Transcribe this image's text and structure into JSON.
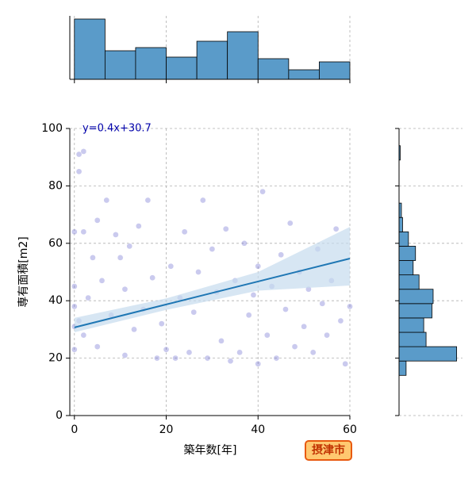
{
  "chart_data": [
    {
      "type": "scatter",
      "annotation": "y=0.4x+30.7",
      "xlabel": "築年数[年]",
      "ylabel": "専有面積[m2]",
      "badge": "摂津市",
      "x": [
        0,
        0,
        0,
        0,
        0,
        1,
        1,
        1,
        2,
        2,
        2,
        3,
        4,
        5,
        5,
        6,
        7,
        8,
        9,
        10,
        11,
        11,
        12,
        13,
        14,
        15,
        16,
        17,
        18,
        19,
        20,
        21,
        22,
        23,
        24,
        25,
        26,
        27,
        28,
        29,
        30,
        31,
        32,
        33,
        34,
        35,
        36,
        37,
        38,
        39,
        40,
        40,
        41,
        42,
        43,
        44,
        45,
        46,
        47,
        48,
        49,
        50,
        51,
        52,
        53,
        54,
        55,
        56,
        57,
        58,
        59,
        60
      ],
      "y": [
        23,
        31,
        38,
        45,
        64,
        33,
        91,
        85,
        64,
        28,
        92,
        41,
        55,
        24,
        68,
        47,
        75,
        35,
        63,
        55,
        21,
        44,
        59,
        30,
        66,
        37,
        75,
        48,
        20,
        32,
        23,
        52,
        20,
        41,
        64,
        22,
        36,
        50,
        75,
        20,
        58,
        43,
        26,
        65,
        19,
        47,
        22,
        60,
        35,
        42,
        18,
        52,
        78,
        28,
        45,
        20,
        56,
        37,
        67,
        24,
        50,
        31,
        44,
        22,
        58,
        39,
        28,
        47,
        65,
        33,
        18,
        38
      ],
      "color": "#5050c8",
      "xlim": [
        -1,
        60
      ],
      "ylim": [
        0,
        100
      ],
      "xticks": [
        0,
        20,
        40,
        60
      ],
      "yticks": [
        0,
        20,
        40,
        60,
        80,
        100
      ],
      "grid": true,
      "fit": {
        "x": [
          0,
          20,
          40,
          60
        ],
        "y": [
          30.7,
          38.7,
          46.7,
          54.7
        ],
        "lower": [
          29,
          36.8,
          43.5,
          45.3
        ],
        "upper": [
          34,
          40.8,
          50,
          65.7
        ],
        "color": "#1f77b4",
        "band_color": "#c6dcee"
      }
    },
    {
      "type": "histogram",
      "orientation": "vertical",
      "bins": [
        0,
        6.67,
        13.33,
        20,
        26.67,
        33.33,
        40,
        46.67,
        53.33,
        60
      ],
      "counts": [
        38,
        18,
        20,
        14,
        24,
        30,
        13,
        6,
        11
      ],
      "color": "#5a9bc9",
      "xlim": [
        -1,
        60
      ],
      "ylim": [
        0,
        40
      ],
      "xticks": [
        0,
        20,
        40,
        60
      ],
      "grid": true
    },
    {
      "type": "histogram",
      "orientation": "horizontal",
      "bins": [
        14,
        19,
        24,
        29,
        34,
        39,
        44,
        49,
        54,
        59,
        64,
        69,
        74,
        79,
        84,
        89,
        94
      ],
      "counts": [
        6,
        49,
        23,
        21,
        28,
        29,
        17,
        12,
        14,
        8,
        3,
        2,
        0,
        0,
        0,
        1
      ],
      "color": "#5a9bc9",
      "xlim": [
        0,
        54
      ],
      "ylim": [
        0,
        100
      ],
      "yticks": [
        0,
        20,
        40,
        60,
        80,
        100
      ],
      "grid": true
    }
  ]
}
